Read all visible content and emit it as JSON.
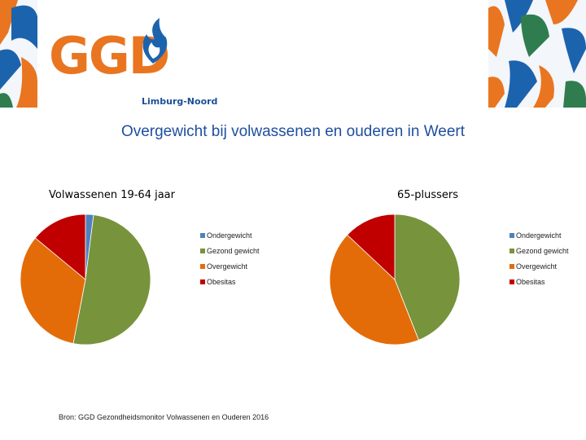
{
  "logo": {
    "text": "GGD",
    "subtitle": "Limburg-Noord",
    "color_orange": "#e97520",
    "color_blue": "#1c63ad"
  },
  "slide": {
    "title": "Overgewicht bij volwassenen en ouderen in Weert"
  },
  "source": "Bron: GGD Gezondheidsmonitor Volwassenen en Ouderen 2016",
  "chart_data": [
    {
      "type": "pie",
      "title": "Volwassenen 19-64 jaar",
      "categories": [
        "Ondergewicht",
        "Gezond gewicht",
        "Overgewicht",
        "Obesitas"
      ],
      "values": [
        2,
        51,
        33,
        14
      ],
      "colors": [
        "#4f81bd",
        "#77933c",
        "#e36c09",
        "#c00000"
      ],
      "legend": "right"
    },
    {
      "type": "pie",
      "title": "65-plussers",
      "categories": [
        "Ondergewicht",
        "Gezond gewicht",
        "Overgewicht",
        "Obesitas"
      ],
      "values": [
        0,
        44,
        43,
        13
      ],
      "colors": [
        "#4f81bd",
        "#77933c",
        "#e36c09",
        "#c00000"
      ],
      "legend": "right"
    }
  ]
}
